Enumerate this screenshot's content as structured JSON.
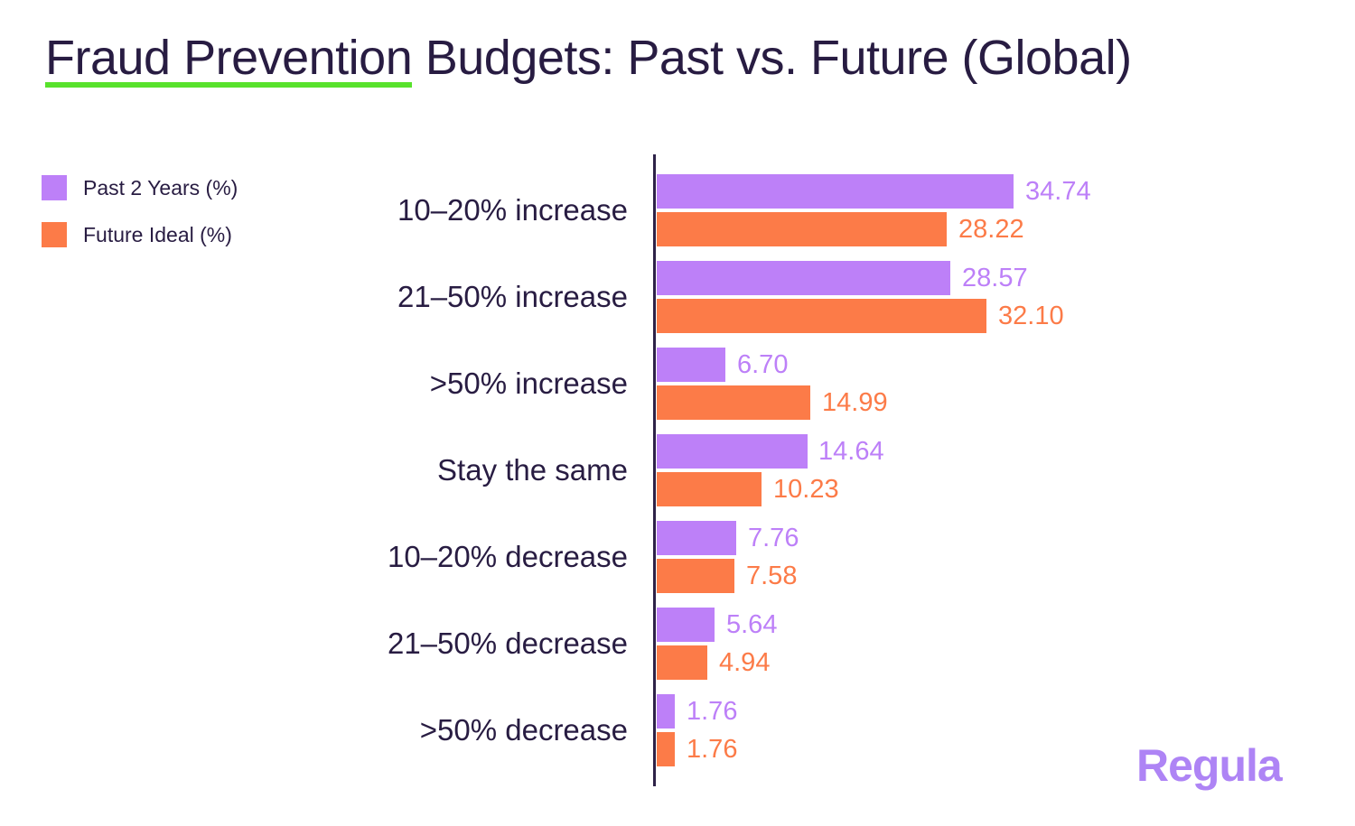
{
  "title": {
    "highlight": "Fraud Prevention",
    "rest": " Budgets: Past vs. Future (Global)"
  },
  "legend": {
    "items": [
      {
        "label": "Past 2 Years (%)",
        "color": "#bd80f8"
      },
      {
        "label": "Future Ideal (%)",
        "color": "#fc7b48"
      }
    ]
  },
  "logo": {
    "text": "Regula",
    "color": "#ae84f5"
  },
  "colors": {
    "bar_past": "#bd80f8",
    "bar_future": "#fc7b48",
    "text_dark": "#281c42",
    "underline_green": "#58e22c",
    "axis": "#2e2248",
    "background": "#ffffff"
  },
  "chart_data": {
    "type": "bar",
    "orientation": "horizontal",
    "title": "Fraud Prevention Budgets: Past vs. Future (Global)",
    "categories": [
      "10–20% increase",
      "21–50% increase",
      ">50% increase",
      "Stay the same",
      "10–20% decrease",
      "21–50% decrease",
      ">50% decrease"
    ],
    "series": [
      {
        "name": "Past 2 Years (%)",
        "color": "#bd80f8",
        "values": [
          34.74,
          28.57,
          6.7,
          14.64,
          7.76,
          5.64,
          1.76
        ],
        "labels": [
          "34.74",
          "28.57",
          "6.70",
          "14.64",
          "7.76",
          "5.64",
          "1.76"
        ]
      },
      {
        "name": "Future Ideal (%)",
        "color": "#fc7b48",
        "values": [
          28.22,
          32.1,
          14.99,
          10.23,
          7.58,
          4.94,
          1.76
        ],
        "labels": [
          "28.22",
          "32.10",
          "14.99",
          "10.23",
          "7.58",
          "4.94",
          "1.76"
        ]
      }
    ],
    "xlim": [
      0,
      35
    ],
    "grid": false,
    "legend_position": "top-left",
    "value_labels": true
  }
}
